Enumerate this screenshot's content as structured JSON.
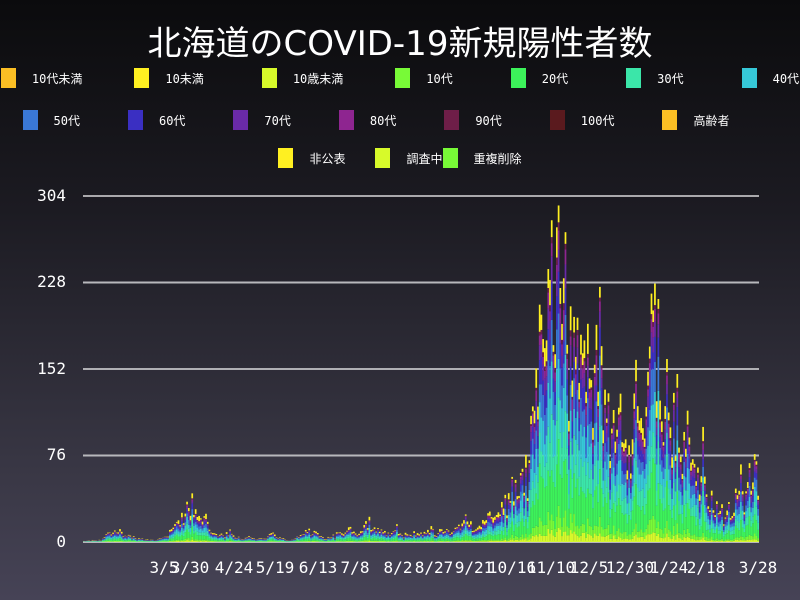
{
  "title": "北海道のCOVID-19新規陽性者数",
  "legend": [
    {
      "label": "10代未満",
      "color": "#fbbf24"
    },
    {
      "label": "10未満",
      "color": "#fff021"
    },
    {
      "label": "10歳未満",
      "color": "#d7fa2a"
    },
    {
      "label": "10代",
      "color": "#78fa37"
    },
    {
      "label": "20代",
      "color": "#3cf25a"
    },
    {
      "label": "30代",
      "color": "#3be6a9"
    },
    {
      "label": "40代",
      "color": "#36c8d8"
    },
    {
      "label": "50代",
      "color": "#3a78d6"
    },
    {
      "label": "60代",
      "color": "#3a2fc2"
    },
    {
      "label": "70代",
      "color": "#6a2aa8"
    },
    {
      "label": "80代",
      "color": "#8e2590"
    },
    {
      "label": "90代",
      "color": "#6e1e48"
    },
    {
      "label": "100代",
      "color": "#5a1a1e"
    },
    {
      "label": "高齢者",
      "color": "#fbbf24"
    },
    {
      "label": "非公表",
      "color": "#fff021"
    },
    {
      "label": "調査中",
      "color": "#d7fa2a"
    },
    {
      "label": "重複削除",
      "color": "#78fa37"
    }
  ],
  "chart_data": {
    "type": "bar",
    "stacked": true,
    "title": "北海道のCOVID-19新規陽性者数",
    "xlabel": "",
    "ylabel": "",
    "ylim": [
      0,
      304
    ],
    "yticks": [
      0,
      76,
      152,
      228,
      304
    ],
    "xticks": [
      "3/5",
      "3/30",
      "4/24",
      "5/19",
      "6/13",
      "7/8",
      "8/2",
      "8/27",
      "9/21",
      "10/16",
      "11/10",
      "12/5",
      "12/30",
      "1/24",
      "2/18",
      "3/28"
    ],
    "grid": true,
    "legend_position": "top",
    "x_range_days": 393,
    "x_start": "2/29",
    "x_end": "3/28",
    "series_order": [
      "20代",
      "30代",
      "40代",
      "50代",
      "60代",
      "70代",
      "80代",
      "90代",
      "非公表"
    ],
    "envelope_daily_total": [
      [
        0,
        1
      ],
      [
        10,
        2
      ],
      [
        15,
        8
      ],
      [
        20,
        12
      ],
      [
        25,
        6
      ],
      [
        30,
        4
      ],
      [
        35,
        3
      ],
      [
        40,
        2
      ],
      [
        45,
        3
      ],
      [
        48,
        6
      ],
      [
        52,
        12
      ],
      [
        55,
        25
      ],
      [
        57,
        20
      ],
      [
        60,
        38
      ],
      [
        62,
        30
      ],
      [
        64,
        40
      ],
      [
        66,
        28
      ],
      [
        68,
        35
      ],
      [
        70,
        22
      ],
      [
        72,
        18
      ],
      [
        75,
        10
      ],
      [
        78,
        8
      ],
      [
        82,
        5
      ],
      [
        85,
        12
      ],
      [
        88,
        6
      ],
      [
        92,
        4
      ],
      [
        96,
        6
      ],
      [
        100,
        3
      ],
      [
        105,
        4
      ],
      [
        110,
        8
      ],
      [
        115,
        3
      ],
      [
        120,
        2
      ],
      [
        125,
        5
      ],
      [
        130,
        12
      ],
      [
        135,
        8
      ],
      [
        140,
        3
      ],
      [
        145,
        5
      ],
      [
        150,
        10
      ],
      [
        155,
        12
      ],
      [
        160,
        8
      ],
      [
        165,
        22
      ],
      [
        168,
        15
      ],
      [
        172,
        10
      ],
      [
        178,
        8
      ],
      [
        182,
        12
      ],
      [
        186,
        6
      ],
      [
        190,
        9
      ],
      [
        195,
        7
      ],
      [
        200,
        12
      ],
      [
        205,
        8
      ],
      [
        210,
        14
      ],
      [
        215,
        10
      ],
      [
        220,
        22
      ],
      [
        225,
        18
      ],
      [
        230,
        12
      ],
      [
        235,
        28
      ],
      [
        238,
        20
      ],
      [
        242,
        32
      ],
      [
        246,
        35
      ],
      [
        250,
        55
      ],
      [
        253,
        45
      ],
      [
        256,
        78
      ],
      [
        258,
        60
      ],
      [
        260,
        90
      ],
      [
        262,
        130
      ],
      [
        264,
        180
      ],
      [
        266,
        200
      ],
      [
        268,
        230
      ],
      [
        270,
        215
      ],
      [
        272,
        264
      ],
      [
        274,
        230
      ],
      [
        276,
        300
      ],
      [
        278,
        220
      ],
      [
        280,
        245
      ],
      [
        282,
        215
      ],
      [
        284,
        255
      ],
      [
        286,
        200
      ],
      [
        288,
        200
      ],
      [
        290,
        175
      ],
      [
        292,
        165
      ],
      [
        294,
        205
      ],
      [
        296,
        150
      ],
      [
        298,
        175
      ],
      [
        300,
        235
      ],
      [
        302,
        145
      ],
      [
        304,
        125
      ],
      [
        306,
        110
      ],
      [
        308,
        125
      ],
      [
        310,
        120
      ],
      [
        312,
        135
      ],
      [
        314,
        100
      ],
      [
        316,
        108
      ],
      [
        318,
        75
      ],
      [
        320,
        155
      ],
      [
        322,
        140
      ],
      [
        324,
        175
      ],
      [
        326,
        115
      ],
      [
        328,
        175
      ],
      [
        330,
        210
      ],
      [
        332,
        180
      ],
      [
        334,
        200
      ],
      [
        336,
        165
      ],
      [
        338,
        140
      ],
      [
        340,
        150
      ],
      [
        342,
        120
      ],
      [
        344,
        130
      ],
      [
        346,
        115
      ],
      [
        348,
        100
      ],
      [
        350,
        105
      ],
      [
        352,
        85
      ],
      [
        354,
        80
      ],
      [
        356,
        70
      ],
      [
        358,
        60
      ],
      [
        360,
        90
      ],
      [
        362,
        45
      ],
      [
        364,
        50
      ],
      [
        366,
        35
      ],
      [
        368,
        40
      ],
      [
        370,
        30
      ],
      [
        372,
        25
      ],
      [
        374,
        40
      ],
      [
        376,
        32
      ],
      [
        378,
        28
      ],
      [
        380,
        55
      ],
      [
        382,
        60
      ],
      [
        384,
        40
      ],
      [
        386,
        62
      ],
      [
        388,
        70
      ],
      [
        390,
        92
      ],
      [
        392,
        65
      ],
      [
        393,
        70
      ]
    ]
  },
  "yaxis": {
    "labels": [
      "304",
      "228",
      "152",
      "76",
      "0"
    ]
  }
}
